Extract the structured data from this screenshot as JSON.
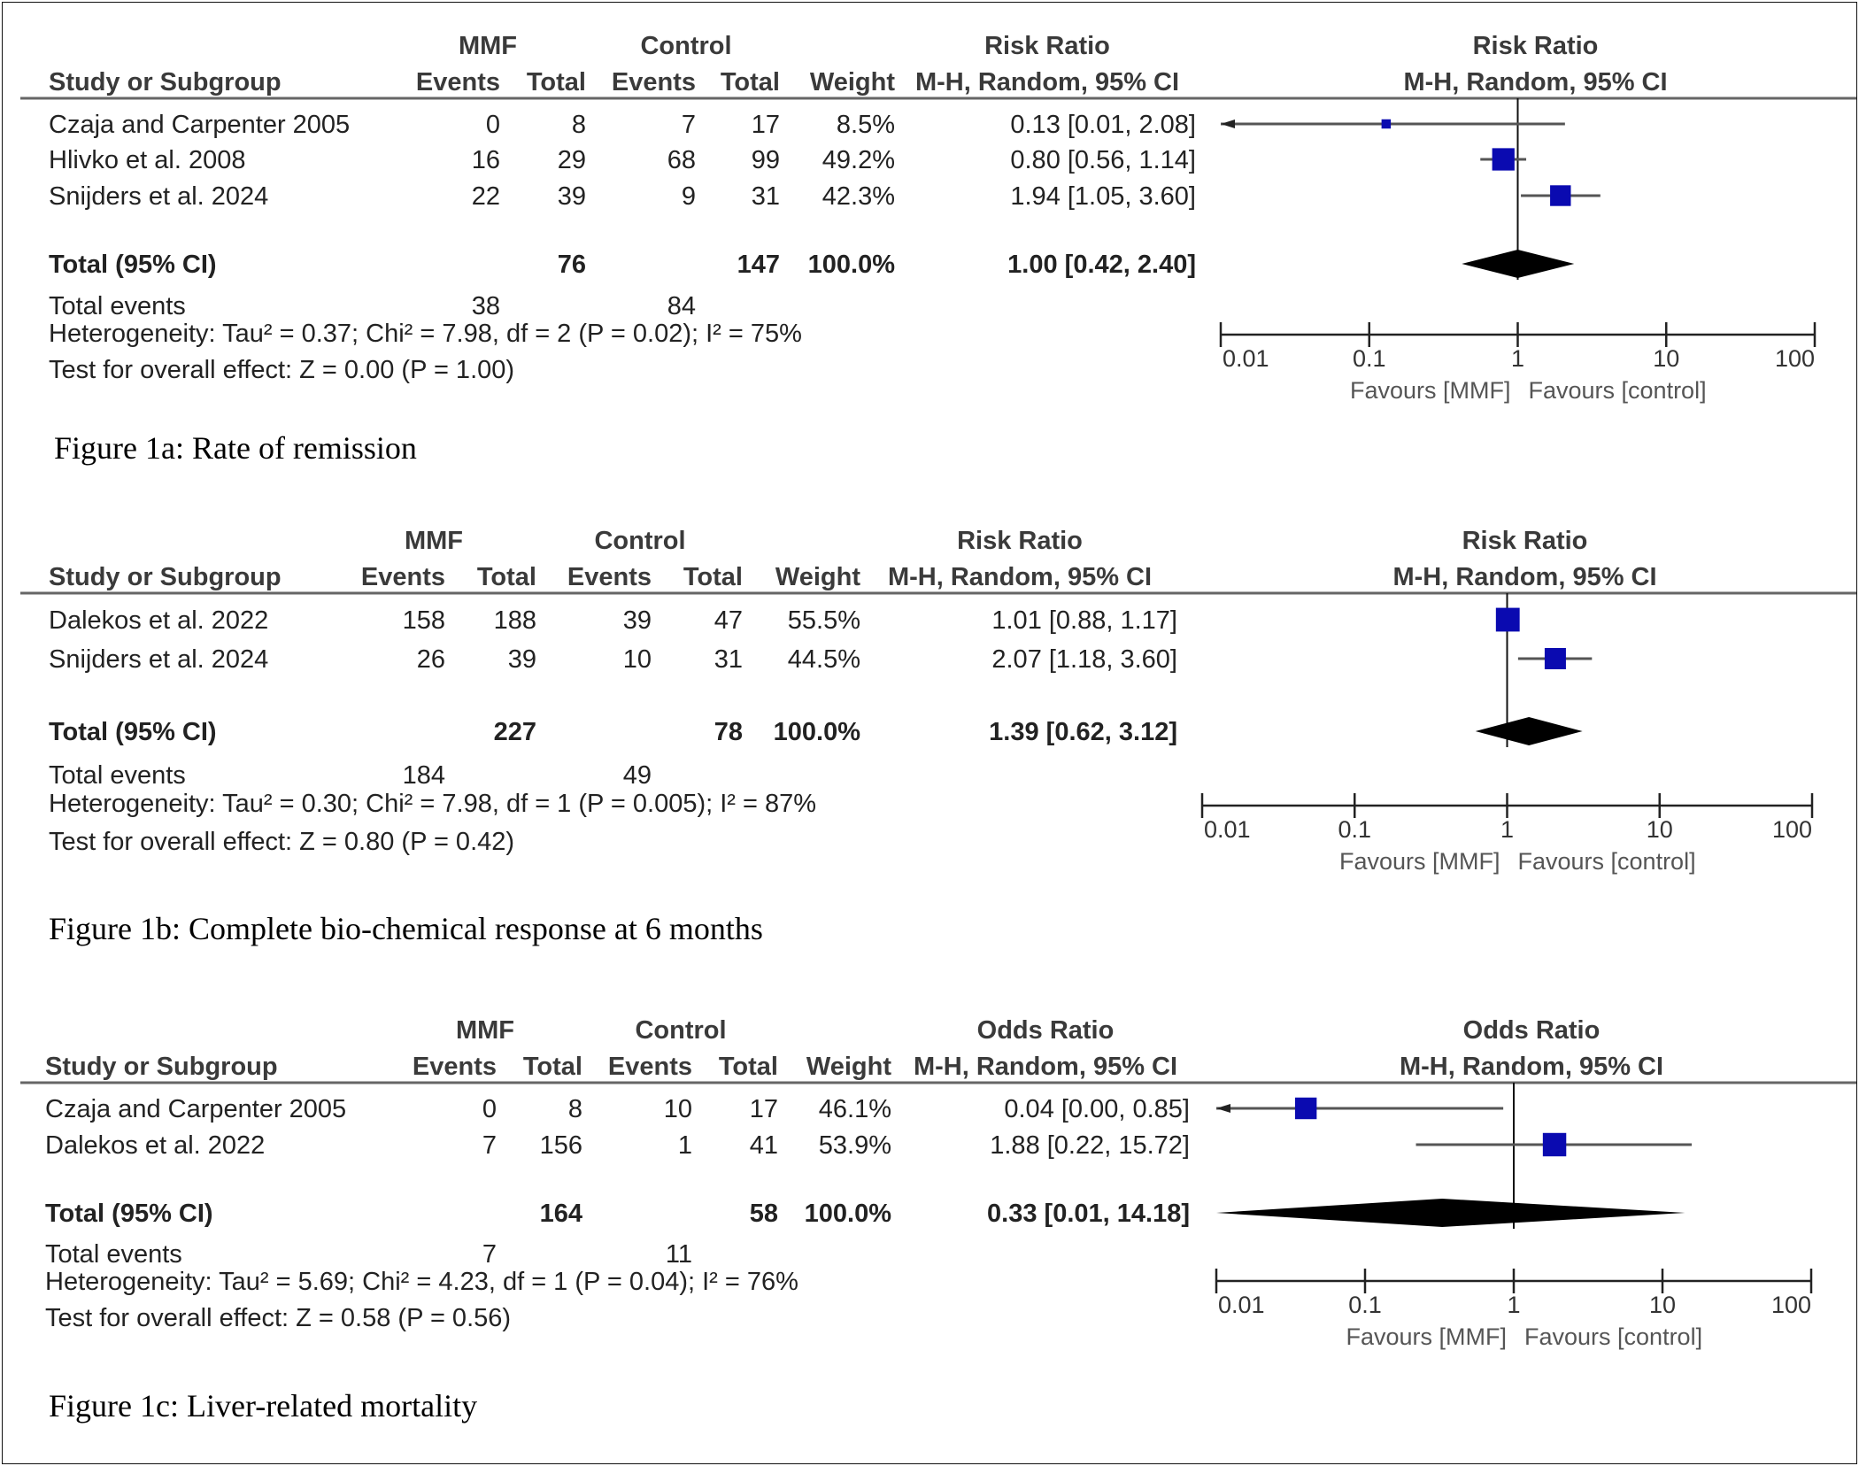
{
  "chart_data": [
    {
      "type": "forest",
      "caption": "Figure 1a: Rate of remission",
      "measure_title": "Risk Ratio",
      "measure_subtitle": "M-H, Random, 95% CI",
      "plot_title": "Risk Ratio",
      "plot_subtitle": "M-H, Random, 95% CI",
      "header": {
        "study": "Study or Subgroup",
        "group1": "MMF",
        "group2": "Control",
        "events": "Events",
        "total": "Total",
        "weight": "Weight"
      },
      "studies": [
        {
          "name": "Czaja and Carpenter 2005",
          "e1": "0",
          "n1": "8",
          "e2": "7",
          "n2": "17",
          "weight": "8.5%",
          "ci_text": "0.13 [0.01, 2.08]",
          "est": 0.13,
          "lo": 0.01,
          "hi": 2.08,
          "w": 8.5
        },
        {
          "name": "Hlivko et al. 2008",
          "e1": "16",
          "n1": "29",
          "e2": "68",
          "n2": "99",
          "weight": "49.2%",
          "ci_text": "0.80 [0.56, 1.14]",
          "est": 0.8,
          "lo": 0.56,
          "hi": 1.14,
          "w": 49.2
        },
        {
          "name": "Snijders et al. 2024",
          "e1": "22",
          "n1": "39",
          "e2": "9",
          "n2": "31",
          "weight": "42.3%",
          "ci_text": "1.94 [1.05, 3.60]",
          "est": 1.94,
          "lo": 1.05,
          "hi": 3.6,
          "w": 42.3
        }
      ],
      "total": {
        "label": "Total (95% CI)",
        "n1": "76",
        "n2": "147",
        "weight": "100.0%",
        "ci_text": "1.00 [0.42, 2.40]",
        "est": 1.0,
        "lo": 0.42,
        "hi": 2.4
      },
      "total_events": {
        "label": "Total events",
        "e1": "38",
        "e2": "84"
      },
      "heterogeneity": "Heterogeneity: Tau² = 0.37; Chi² = 7.98, df = 2 (P = 0.02); I² = 75%",
      "overall": "Test for overall effect: Z = 0.00 (P = 1.00)",
      "axis": {
        "scale": "log",
        "ticks": [
          "0.01",
          "0.1",
          "1",
          "10",
          "100"
        ],
        "range": [
          0.01,
          100
        ]
      },
      "favours_left": "Favours [MMF]",
      "favours_right": "Favours [control]"
    },
    {
      "type": "forest",
      "caption": "Figure 1b: Complete bio-chemical response at 6 months",
      "measure_title": "Risk Ratio",
      "measure_subtitle": "M-H, Random, 95% CI",
      "plot_title": "Risk Ratio",
      "plot_subtitle": "M-H, Random, 95% CI",
      "header": {
        "study": "Study or Subgroup",
        "group1": "MMF",
        "group2": "Control",
        "events": "Events",
        "total": "Total",
        "weight": "Weight"
      },
      "studies": [
        {
          "name": "Dalekos et al. 2022",
          "e1": "158",
          "n1": "188",
          "e2": "39",
          "n2": "47",
          "weight": "55.5%",
          "ci_text": "1.01 [0.88, 1.17]",
          "est": 1.01,
          "lo": 0.88,
          "hi": 1.17,
          "w": 55.5
        },
        {
          "name": "Snijders et al. 2024",
          "e1": "26",
          "n1": "39",
          "e2": "10",
          "n2": "31",
          "weight": "44.5%",
          "ci_text": "2.07 [1.18, 3.60]",
          "est": 2.07,
          "lo": 1.18,
          "hi": 3.6,
          "w": 44.5
        }
      ],
      "total": {
        "label": "Total (95% CI)",
        "n1": "227",
        "n2": "78",
        "weight": "100.0%",
        "ci_text": "1.39 [0.62, 3.12]",
        "est": 1.39,
        "lo": 0.62,
        "hi": 3.12
      },
      "total_events": {
        "label": "Total events",
        "e1": "184",
        "e2": "49"
      },
      "heterogeneity": "Heterogeneity: Tau² = 0.30; Chi² = 7.98, df = 1 (P = 0.005); I² = 87%",
      "overall": "Test for overall effect: Z = 0.80 (P = 0.42)",
      "axis": {
        "scale": "log",
        "ticks": [
          "0.01",
          "0.1",
          "1",
          "10",
          "100"
        ],
        "range": [
          0.01,
          100
        ]
      },
      "favours_left": "Favours [MMF]",
      "favours_right": "Favours [control]"
    },
    {
      "type": "forest",
      "caption": "Figure 1c: Liver-related mortality",
      "measure_title": "Odds Ratio",
      "measure_subtitle": "M-H, Random, 95% CI",
      "plot_title": "Odds Ratio",
      "plot_subtitle": "M-H, Random, 95% CI",
      "header": {
        "study": "Study or Subgroup",
        "group1": "MMF",
        "group2": "Control",
        "events": "Events",
        "total": "Total",
        "weight": "Weight"
      },
      "studies": [
        {
          "name": "Czaja and Carpenter 2005",
          "e1": "0",
          "n1": "8",
          "e2": "10",
          "n2": "17",
          "weight": "46.1%",
          "ci_text": "0.04 [0.00, 0.85]",
          "est": 0.04,
          "lo": 0.0,
          "hi": 0.85,
          "w": 46.1
        },
        {
          "name": "Dalekos et al. 2022",
          "e1": "7",
          "n1": "156",
          "e2": "1",
          "n2": "41",
          "weight": "53.9%",
          "ci_text": "1.88 [0.22, 15.72]",
          "est": 1.88,
          "lo": 0.22,
          "hi": 15.72,
          "w": 53.9
        }
      ],
      "total": {
        "label": "Total (95% CI)",
        "n1": "164",
        "n2": "58",
        "weight": "100.0%",
        "ci_text": "0.33 [0.01, 14.18]",
        "est": 0.33,
        "lo": 0.01,
        "hi": 14.18
      },
      "total_events": {
        "label": "Total events",
        "e1": "7",
        "e2": "11"
      },
      "heterogeneity": "Heterogeneity: Tau² = 5.69; Chi² = 4.23, df = 1 (P = 0.04); I² = 76%",
      "overall": "Test for overall effect: Z = 0.58 (P = 0.56)",
      "axis": {
        "scale": "log",
        "ticks": [
          "0.01",
          "0.1",
          "1",
          "10",
          "100"
        ],
        "range": [
          0.01,
          100
        ]
      },
      "favours_left": "Favours [MMF]",
      "favours_right": "Favours [control]"
    }
  ],
  "colors": {
    "marker": "#0a0ab0",
    "ci_line": "#555555",
    "diamond": "#000000",
    "rule": "#666666"
  }
}
